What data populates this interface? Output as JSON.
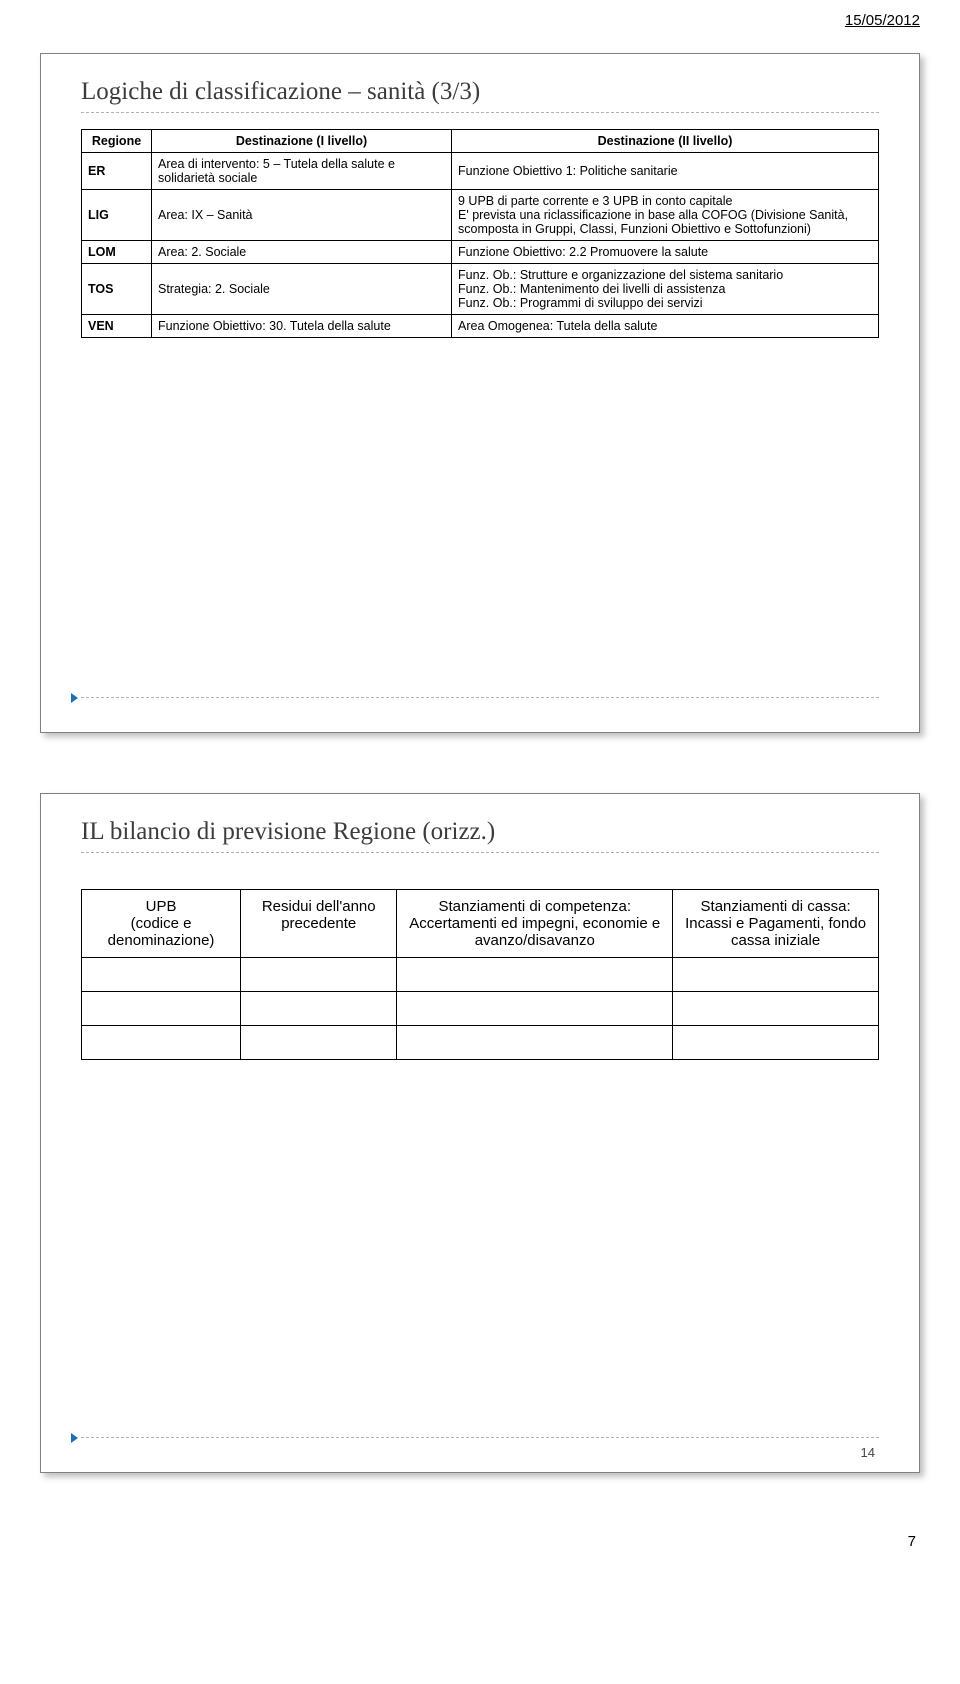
{
  "header_date": "15/05/2012",
  "page_number": "7",
  "slide1": {
    "title": "Logiche di classificazione – sanità (3/3)",
    "table": {
      "headers": [
        "Regione",
        "Destinazione (I livello)",
        "Destinazione (II livello)"
      ],
      "rows": [
        {
          "region": "ER",
          "c1": "Area di intervento: 5 – Tutela della salute e solidarietà sociale",
          "c2": "Funzione Obiettivo 1: Politiche sanitarie"
        },
        {
          "region": "LIG",
          "c1": "Area: IX – Sanità",
          "c2": "9 UPB di parte corrente e 3 UPB in conto capitale\nE' prevista una riclassificazione in base alla COFOG (Divisione Sanità, scomposta in Gruppi, Classi, Funzioni Obiettivo e Sottofunzioni)"
        },
        {
          "region": "LOM",
          "c1": "Area: 2. Sociale",
          "c2": "Funzione Obiettivo: 2.2 Promuovere la salute"
        },
        {
          "region": "TOS",
          "c1": "Strategia: 2. Sociale",
          "c2": "Funz. Ob.: Strutture e organizzazione del sistema sanitario\nFunz. Ob.: Mantenimento dei livelli di assistenza\nFunz. Ob.: Programmi di sviluppo dei servizi"
        },
        {
          "region": "VEN",
          "c1": "Funzione Obiettivo: 30. Tutela della salute",
          "c2": "Area Omogenea: Tutela della salute"
        }
      ]
    }
  },
  "slide2": {
    "title": "IL bilancio di previsione Regione (orizz.)",
    "number": "14",
    "table": {
      "headers": [
        {
          "l1": "UPB",
          "l2": "(codice e denominazione)"
        },
        {
          "l1": "Residui dell'anno precedente",
          "l2": ""
        },
        {
          "l1": "Stanziamenti di competenza:",
          "l2": "Accertamenti ed impegni, economie e avanzo/disavanzo"
        },
        {
          "l1": "Stanziamenti di cassa:",
          "l2": "Incassi e Pagamenti, fondo cassa iniziale"
        }
      ]
    }
  }
}
